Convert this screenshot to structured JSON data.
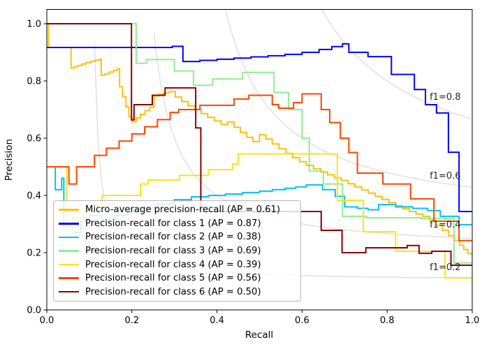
{
  "figure": {
    "background": "#ffffff",
    "frame_color": "#000000",
    "text_color": "#000000"
  },
  "chart_data": {
    "type": "line",
    "title": "",
    "xlabel": "Recall",
    "ylabel": "Precision",
    "xlim": [
      0.0,
      1.0
    ],
    "ylim": [
      0.0,
      1.05
    ],
    "grid": false,
    "legend_position": "lower left",
    "xticks": [
      "0.0",
      "0.2",
      "0.4",
      "0.6",
      "0.8",
      "1.0"
    ],
    "yticks": [
      "0.0",
      "0.2",
      "0.4",
      "0.6",
      "0.8",
      "1.0"
    ],
    "xtick_values": [
      0.0,
      0.2,
      0.4,
      0.6,
      0.8,
      1.0
    ],
    "ytick_values": [
      0.0,
      0.2,
      0.4,
      0.6,
      0.8,
      1.0
    ],
    "iso_f1": {
      "color": "#e2e2e2",
      "values": [
        0.2,
        0.4,
        0.6,
        0.8
      ],
      "labels": [
        {
          "text": "f1=0.2",
          "x": 0.9,
          "y": 0.149
        },
        {
          "text": "f1=0.4",
          "x": 0.9,
          "y": 0.297
        },
        {
          "text": "f1=0.6",
          "x": 0.9,
          "y": 0.468
        },
        {
          "text": "f1=0.8",
          "x": 0.9,
          "y": 0.744
        }
      ]
    },
    "series": [
      {
        "key": "micro-average",
        "label": "Micro-average precision-recall (AP = 0.61)",
        "ap": 0.61,
        "color": "#ffc107",
        "points": [
          [
            0,
            1.0
          ],
          [
            0.004,
            0.917
          ],
          [
            0.054,
            0.917
          ],
          [
            0.057,
            0.845
          ],
          [
            0.065,
            0.85
          ],
          [
            0.073,
            0.854
          ],
          [
            0.082,
            0.859
          ],
          [
            0.092,
            0.864
          ],
          [
            0.103,
            0.869
          ],
          [
            0.115,
            0.873
          ],
          [
            0.125,
            0.876
          ],
          [
            0.128,
            0.82
          ],
          [
            0.137,
            0.825
          ],
          [
            0.147,
            0.831
          ],
          [
            0.157,
            0.837
          ],
          [
            0.166,
            0.843
          ],
          [
            0.171,
            0.78
          ],
          [
            0.178,
            0.745
          ],
          [
            0.186,
            0.71
          ],
          [
            0.193,
            0.675
          ],
          [
            0.2,
            0.657
          ],
          [
            0.21,
            0.67
          ],
          [
            0.22,
            0.683
          ],
          [
            0.231,
            0.696
          ],
          [
            0.242,
            0.708
          ],
          [
            0.252,
            0.748
          ],
          [
            0.263,
            0.753
          ],
          [
            0.275,
            0.758
          ],
          [
            0.288,
            0.763
          ],
          [
            0.302,
            0.744
          ],
          [
            0.317,
            0.728
          ],
          [
            0.332,
            0.713
          ],
          [
            0.348,
            0.7
          ],
          [
            0.363,
            0.686
          ],
          [
            0.378,
            0.673
          ],
          [
            0.394,
            0.66
          ],
          [
            0.41,
            0.648
          ],
          [
            0.425,
            0.657
          ],
          [
            0.44,
            0.638
          ],
          [
            0.455,
            0.62
          ],
          [
            0.47,
            0.603
          ],
          [
            0.485,
            0.588
          ],
          [
            0.5,
            0.612
          ],
          [
            0.515,
            0.597
          ],
          [
            0.53,
            0.58
          ],
          [
            0.546,
            0.563
          ],
          [
            0.562,
            0.547
          ],
          [
            0.578,
            0.532
          ],
          [
            0.594,
            0.518
          ],
          [
            0.61,
            0.505
          ],
          [
            0.627,
            0.493
          ],
          [
            0.644,
            0.482
          ],
          [
            0.66,
            0.472
          ],
          [
            0.676,
            0.462
          ],
          [
            0.692,
            0.452
          ],
          [
            0.708,
            0.441
          ],
          [
            0.724,
            0.43
          ],
          [
            0.74,
            0.419
          ],
          [
            0.756,
            0.408
          ],
          [
            0.772,
            0.397
          ],
          [
            0.788,
            0.386
          ],
          [
            0.804,
            0.375
          ],
          [
            0.82,
            0.364
          ],
          [
            0.836,
            0.354
          ],
          [
            0.852,
            0.344
          ],
          [
            0.868,
            0.335
          ],
          [
            0.884,
            0.327
          ],
          [
            0.9,
            0.312
          ],
          [
            0.915,
            0.296
          ],
          [
            0.93,
            0.278
          ],
          [
            0.945,
            0.259
          ],
          [
            0.958,
            0.242
          ],
          [
            0.97,
            0.226
          ],
          [
            0.98,
            0.211
          ],
          [
            0.99,
            0.197
          ],
          [
            1.0,
            0.186
          ]
        ]
      },
      {
        "key": "class-1",
        "label": "Precision-recall for class 1 (AP = 0.87)",
        "ap": 0.87,
        "color": "#0000ff",
        "points": [
          [
            0,
            0.917
          ],
          [
            0.29,
            0.917
          ],
          [
            0.295,
            0.921
          ],
          [
            0.32,
            0.868
          ],
          [
            0.36,
            0.872
          ],
          [
            0.4,
            0.876
          ],
          [
            0.44,
            0.88
          ],
          [
            0.48,
            0.884
          ],
          [
            0.52,
            0.888
          ],
          [
            0.56,
            0.893
          ],
          [
            0.6,
            0.9
          ],
          [
            0.64,
            0.91
          ],
          [
            0.67,
            0.92
          ],
          [
            0.695,
            0.93
          ],
          [
            0.71,
            0.9
          ],
          [
            0.755,
            0.885
          ],
          [
            0.81,
            0.823
          ],
          [
            0.864,
            0.77
          ],
          [
            0.89,
            0.717
          ],
          [
            0.916,
            0.688
          ],
          [
            0.944,
            0.551
          ],
          [
            0.969,
            0.344
          ],
          [
            1.0,
            0.344
          ]
        ]
      },
      {
        "key": "class-2",
        "label": "Precision-recall for class 2 (AP = 0.38)",
        "ap": 0.38,
        "color": "#00bfff",
        "points": [
          [
            0,
            0.5
          ],
          [
            0.018,
            0.5
          ],
          [
            0.02,
            0.42
          ],
          [
            0.035,
            0.46
          ],
          [
            0.04,
            0.3
          ],
          [
            0.06,
            0.27
          ],
          [
            0.08,
            0.31
          ],
          [
            0.1,
            0.33
          ],
          [
            0.13,
            0.315
          ],
          [
            0.16,
            0.33
          ],
          [
            0.19,
            0.345
          ],
          [
            0.22,
            0.357
          ],
          [
            0.26,
            0.37
          ],
          [
            0.3,
            0.385
          ],
          [
            0.34,
            0.395
          ],
          [
            0.38,
            0.4
          ],
          [
            0.42,
            0.405
          ],
          [
            0.46,
            0.41
          ],
          [
            0.5,
            0.415
          ],
          [
            0.53,
            0.42
          ],
          [
            0.56,
            0.425
          ],
          [
            0.585,
            0.43
          ],
          [
            0.61,
            0.437
          ],
          [
            0.648,
            0.42
          ],
          [
            0.678,
            0.397
          ],
          [
            0.7,
            0.36
          ],
          [
            0.73,
            0.355
          ],
          [
            0.755,
            0.35
          ],
          [
            0.78,
            0.368
          ],
          [
            0.82,
            0.36
          ],
          [
            0.86,
            0.355
          ],
          [
            0.895,
            0.347
          ],
          [
            0.925,
            0.327
          ],
          [
            0.969,
            0.298
          ],
          [
            1.0,
            0.298
          ]
        ]
      },
      {
        "key": "class-3",
        "label": "Precision-recall for class 3 (AP = 0.69)",
        "ap": 0.69,
        "color": "#90ee90",
        "points": [
          [
            0,
            1.0
          ],
          [
            0.21,
            0.862
          ],
          [
            0.235,
            0.875
          ],
          [
            0.3,
            0.835
          ],
          [
            0.345,
            0.785
          ],
          [
            0.39,
            0.807
          ],
          [
            0.46,
            0.83
          ],
          [
            0.534,
            0.76
          ],
          [
            0.568,
            0.7
          ],
          [
            0.6,
            0.6
          ],
          [
            0.617,
            0.485
          ],
          [
            0.65,
            0.44
          ],
          [
            0.695,
            0.327
          ],
          [
            0.75,
            0.322
          ],
          [
            0.88,
            0.32
          ],
          [
            0.957,
            0.164
          ],
          [
            1.0,
            0.164
          ]
        ]
      },
      {
        "key": "class-4",
        "label": "Precision-recall for class 4 (AP = 0.39)",
        "ap": 0.39,
        "color": "#ffe119",
        "points": [
          [
            0,
            0.5
          ],
          [
            0.042,
            0.5
          ],
          [
            0.047,
            0.25
          ],
          [
            0.06,
            0.32
          ],
          [
            0.09,
            0.345
          ],
          [
            0.13,
            0.4
          ],
          [
            0.22,
            0.44
          ],
          [
            0.238,
            0.454
          ],
          [
            0.312,
            0.47
          ],
          [
            0.38,
            0.49
          ],
          [
            0.437,
            0.51
          ],
          [
            0.45,
            0.545
          ],
          [
            0.683,
            0.383
          ],
          [
            0.744,
            0.273
          ],
          [
            0.82,
            0.205
          ],
          [
            0.936,
            0.112
          ],
          [
            1.0,
            0.112
          ]
        ]
      },
      {
        "key": "class-5",
        "label": "Precision-recall for class 5 (AP = 0.56)",
        "ap": 0.56,
        "color": "#ff4500",
        "points": [
          [
            0,
            0.5
          ],
          [
            0.048,
            0.5
          ],
          [
            0.052,
            0.44
          ],
          [
            0.07,
            0.5
          ],
          [
            0.112,
            0.54
          ],
          [
            0.14,
            0.565
          ],
          [
            0.17,
            0.59
          ],
          [
            0.2,
            0.615
          ],
          [
            0.23,
            0.64
          ],
          [
            0.26,
            0.665
          ],
          [
            0.29,
            0.69
          ],
          [
            0.31,
            0.7
          ],
          [
            0.36,
            0.715
          ],
          [
            0.44,
            0.737
          ],
          [
            0.475,
            0.75
          ],
          [
            0.53,
            0.717
          ],
          [
            0.545,
            0.705
          ],
          [
            0.58,
            0.724
          ],
          [
            0.6,
            0.755
          ],
          [
            0.645,
            0.7
          ],
          [
            0.665,
            0.655
          ],
          [
            0.69,
            0.6
          ],
          [
            0.71,
            0.55
          ],
          [
            0.73,
            0.478
          ],
          [
            0.79,
            0.44
          ],
          [
            0.855,
            0.388
          ],
          [
            0.91,
            0.31
          ],
          [
            0.969,
            0.242
          ],
          [
            1.0,
            0.242
          ]
        ]
      },
      {
        "key": "class-6",
        "label": "Precision-recall for class 6 (AP = 0.50)",
        "ap": 0.5,
        "color": "#8b0000",
        "points": [
          [
            0,
            1.0
          ],
          [
            0.199,
            0.664
          ],
          [
            0.205,
            0.717
          ],
          [
            0.248,
            0.75
          ],
          [
            0.278,
            0.776
          ],
          [
            0.35,
            0.636
          ],
          [
            0.362,
            0.344
          ],
          [
            0.645,
            0.278
          ],
          [
            0.694,
            0.2
          ],
          [
            0.75,
            0.217
          ],
          [
            0.847,
            0.225
          ],
          [
            0.875,
            0.198
          ],
          [
            0.905,
            0.205
          ],
          [
            0.95,
            0.156
          ],
          [
            1.0,
            0.156
          ]
        ]
      }
    ]
  }
}
